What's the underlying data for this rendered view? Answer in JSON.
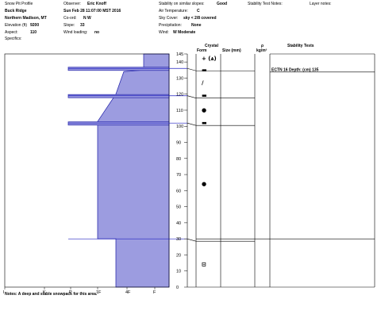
{
  "header": {
    "title": "Snow Pit Profile",
    "location": "Buck Ridge",
    "region": "Northern Madison, MT",
    "elevation_label": "Elevation (ft)",
    "elevation_value": "9200",
    "aspect_label": "Aspect:",
    "aspect_value": "110",
    "specifics_label": "Specifics:",
    "observer_label": "Observer:",
    "observer_value": "Eric Knoff",
    "datetime": "Sun Feb 28 11:07:00 MST 2016",
    "coord_label": "Co-ord:",
    "coord_value": "N W",
    "slope_label": "Slope:",
    "slope_value": "33",
    "wind_loading_label": "Wind loading:",
    "wind_loading_value": "no",
    "stability_similar_label": "Stability on similar slopes:",
    "stability_similar_value": "Good",
    "air_temp_label": "Air Temperature:",
    "air_temp_value": "C",
    "sky_cover_label": "Sky Cover:",
    "sky_cover_value": "sky < 2/8 covered",
    "precip_label": "Precipitation:",
    "precip_value": "None",
    "wind_label": "Wind:",
    "wind_value": "W Moderate",
    "stability_notes_label": "Stability Test Notes:",
    "layer_notes_label": "Layer notes:"
  },
  "columns": {
    "crystal": "Crystal",
    "form": "Form",
    "size": "Size (mm)",
    "rho": "ρ",
    "rho_unit": "kg/m³",
    "stability_tests": "Stability Tests"
  },
  "stability_tests": [
    {
      "text": "ECTN 16   Depth: (cm) 135",
      "depth": 135
    }
  ],
  "notes": "Notes:  A deep and stable snowpack for this area.",
  "colors": {
    "hardness_fill": "#9c9ce0",
    "hardness_stroke": "#3030b0",
    "layer_line": "#2020c0"
  },
  "chart_data": {
    "type": "area",
    "title": "",
    "xlabel": "",
    "ylabel": "",
    "hardness_ticks": [
      "I",
      "K",
      "P",
      "1F",
      "4F",
      "F"
    ],
    "depth_ticks": [
      145,
      140,
      130,
      120,
      110,
      100,
      90,
      80,
      70,
      60,
      50,
      40,
      30,
      20,
      10,
      0
    ],
    "ylim": [
      0,
      145
    ],
    "hardness_axis_note": "hardness axis runs from F (fist) at right to I (ice) at left",
    "hardness_profile": [
      {
        "top": 145,
        "bottom": 135,
        "hardness": "4F+"
      },
      {
        "top": 135,
        "bottom": 120,
        "hardness": "P-",
        "transition_to": "1F+"
      },
      {
        "top": 120,
        "bottom": 103,
        "hardness": "1F+"
      },
      {
        "top": 103,
        "bottom": 30,
        "hardness": "1F"
      },
      {
        "top": 30,
        "bottom": 0,
        "hardness": "4F-"
      }
    ],
    "thin_layers": [
      {
        "depth": 136,
        "hardness": "K"
      },
      {
        "depth": 119,
        "hardness": "K"
      },
      {
        "depth": 102,
        "hardness": "K"
      }
    ],
    "layer_boundaries": [
      136,
      119,
      102,
      30
    ],
    "crystal_forms": [
      {
        "depth": 142,
        "symbol": "+ (⩓)"
      },
      {
        "depth": 135,
        "symbol": "▬"
      },
      {
        "depth": 127,
        "symbol": "/"
      },
      {
        "depth": 119,
        "symbol": "▬"
      },
      {
        "depth": 110,
        "symbol": "●"
      },
      {
        "depth": 102,
        "symbol": "▬"
      },
      {
        "depth": 64,
        "symbol": "●"
      },
      {
        "depth": 14,
        "symbol": "⊟"
      }
    ]
  }
}
